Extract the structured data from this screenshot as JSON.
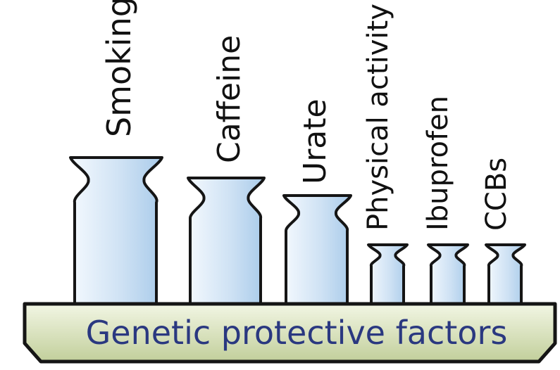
{
  "base": {
    "label": "Genetic protective factors",
    "colors": {
      "top": "#f2f6e4",
      "bottom": "#c2cf9b",
      "stroke": "#151515",
      "text": "#2a3880"
    }
  },
  "weights": [
    {
      "label": "Smoking"
    },
    {
      "label": "Caffeine"
    },
    {
      "label": "Urate"
    },
    {
      "label": "Physical activity"
    },
    {
      "label": "Ibuprofen"
    },
    {
      "label": "CCBs"
    }
  ],
  "colors": {
    "weight_fill_light": "#f4f9fe",
    "weight_fill_dark": "#a9cbea",
    "stroke": "#151515",
    "label": "#111111"
  }
}
